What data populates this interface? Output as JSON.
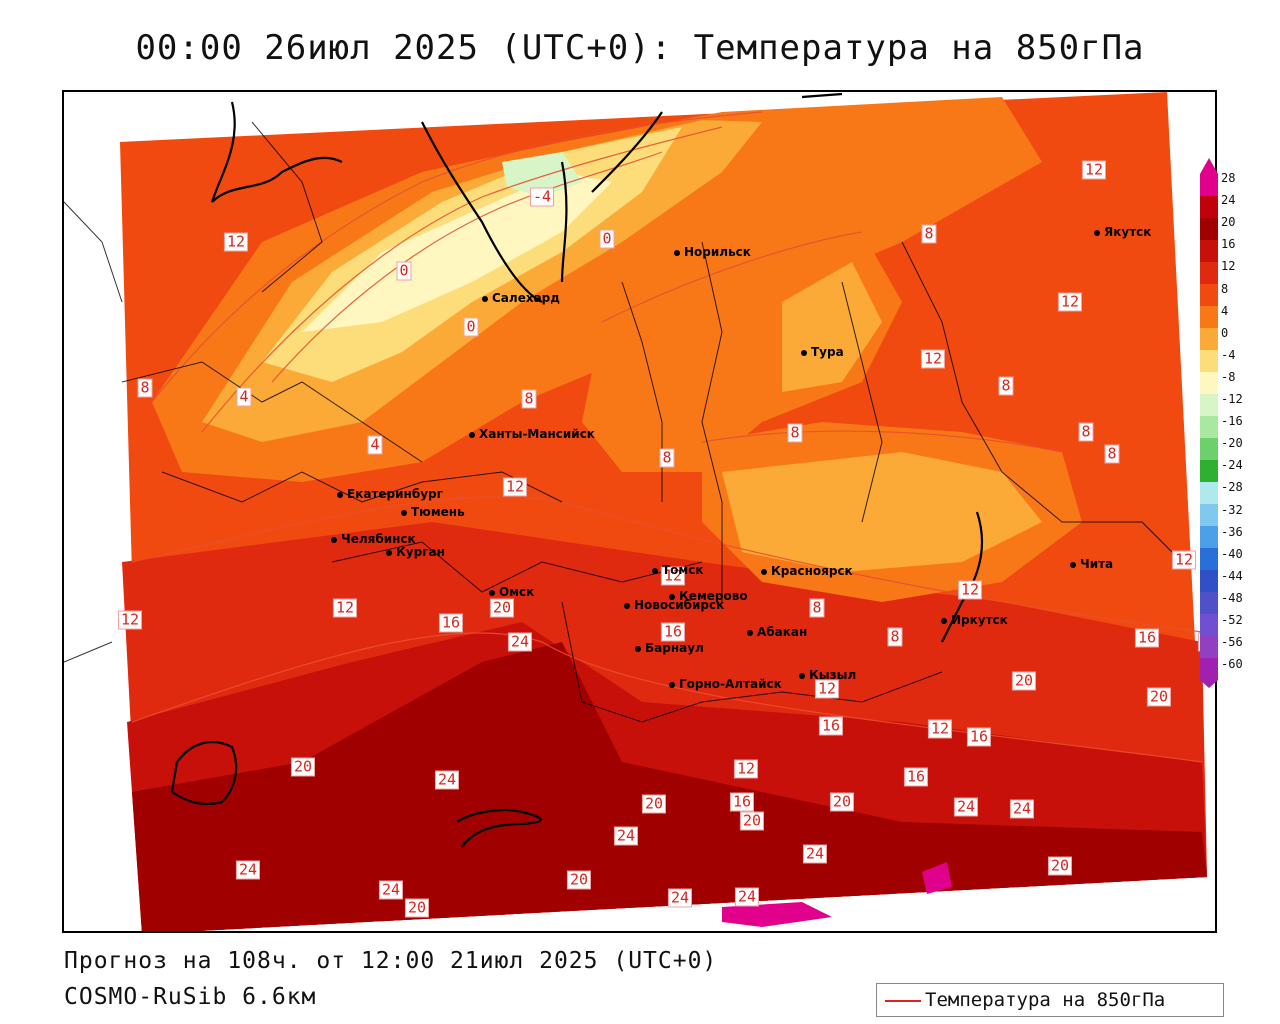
{
  "header": {
    "title": "00:00 26июл 2025 (UTC+0): Температура на 850гПа"
  },
  "footer": {
    "forecast": "Прогноз на 108ч. от 12:00 21июл 2025 (UTC+0)",
    "model": "COSMO-RuSib 6.6км"
  },
  "legend": {
    "label": "Температура на 850гПа",
    "line_color": "#e02020"
  },
  "colorbar": {
    "ticks": [
      "28",
      "24",
      "20",
      "16",
      "12",
      "8",
      "4",
      "0",
      "-4",
      "-8",
      "-12",
      "-16",
      "-20",
      "-24",
      "-28",
      "-32",
      "-36",
      "-40",
      "-44",
      "-48",
      "-52",
      "-56",
      "-60"
    ],
    "colors": [
      "#e0008c",
      "#c0000a",
      "#a00000",
      "#c8100a",
      "#e02a10",
      "#f04a10",
      "#f87818",
      "#fbaa38",
      "#fddc7a",
      "#fff6c0",
      "#d8f5c8",
      "#a8e8a0",
      "#6cd06c",
      "#30b030",
      "#b0e8f0",
      "#80c8f0",
      "#4ca0e8",
      "#2870d8",
      "#3050c8",
      "#5050c8",
      "#7050d0",
      "#9040c0",
      "#a020b0"
    ]
  },
  "cities": [
    {
      "name": "Норильск"
    },
    {
      "name": "Якутск"
    },
    {
      "name": "Салехард"
    },
    {
      "name": "Тура"
    },
    {
      "name": "Ханты-Мансийск"
    },
    {
      "name": "Екатеринбург"
    },
    {
      "name": "Тюмень"
    },
    {
      "name": "Челябинск"
    },
    {
      "name": "Курган"
    },
    {
      "name": "Омск"
    },
    {
      "name": "Новосибирск"
    },
    {
      "name": "Томск"
    },
    {
      "name": "Кемерово"
    },
    {
      "name": "Красноярск"
    },
    {
      "name": "Абакан"
    },
    {
      "name": "Барнаул"
    },
    {
      "name": "Горно-Алтайск"
    },
    {
      "name": "Кызыл"
    },
    {
      "name": "Иркутск"
    },
    {
      "name": "Чита"
    }
  ],
  "contour_labels": [
    {
      "value": "12"
    },
    {
      "value": "-4"
    },
    {
      "value": "0"
    },
    {
      "value": "0"
    },
    {
      "value": "0"
    },
    {
      "value": "12"
    },
    {
      "value": "8"
    },
    {
      "value": "12"
    },
    {
      "value": "12"
    },
    {
      "value": "8"
    },
    {
      "value": "4"
    },
    {
      "value": "8"
    },
    {
      "value": "8"
    },
    {
      "value": "8"
    },
    {
      "value": "8"
    },
    {
      "value": "4"
    },
    {
      "value": "8"
    },
    {
      "value": "12"
    },
    {
      "value": "8"
    },
    {
      "value": "12"
    },
    {
      "value": "12"
    },
    {
      "value": "12"
    },
    {
      "value": "12"
    },
    {
      "value": "16"
    },
    {
      "value": "20"
    },
    {
      "value": "24"
    },
    {
      "value": "16"
    },
    {
      "value": "8"
    },
    {
      "value": "8"
    },
    {
      "value": "12"
    },
    {
      "value": "16"
    },
    {
      "value": "20"
    },
    {
      "value": "20"
    },
    {
      "value": "20"
    },
    {
      "value": "12"
    },
    {
      "value": "16"
    },
    {
      "value": "12"
    },
    {
      "value": "16"
    },
    {
      "value": "16"
    },
    {
      "value": "20"
    },
    {
      "value": "24"
    },
    {
      "value": "12"
    },
    {
      "value": "16"
    },
    {
      "value": "20"
    },
    {
      "value": "20"
    },
    {
      "value": "20"
    },
    {
      "value": "24"
    },
    {
      "value": "24"
    },
    {
      "value": "24"
    },
    {
      "value": "24"
    },
    {
      "value": "24"
    },
    {
      "value": "20"
    },
    {
      "value": "20"
    },
    {
      "value": "24"
    },
    {
      "value": "24"
    },
    {
      "value": "24"
    },
    {
      "value": "20"
    }
  ]
}
